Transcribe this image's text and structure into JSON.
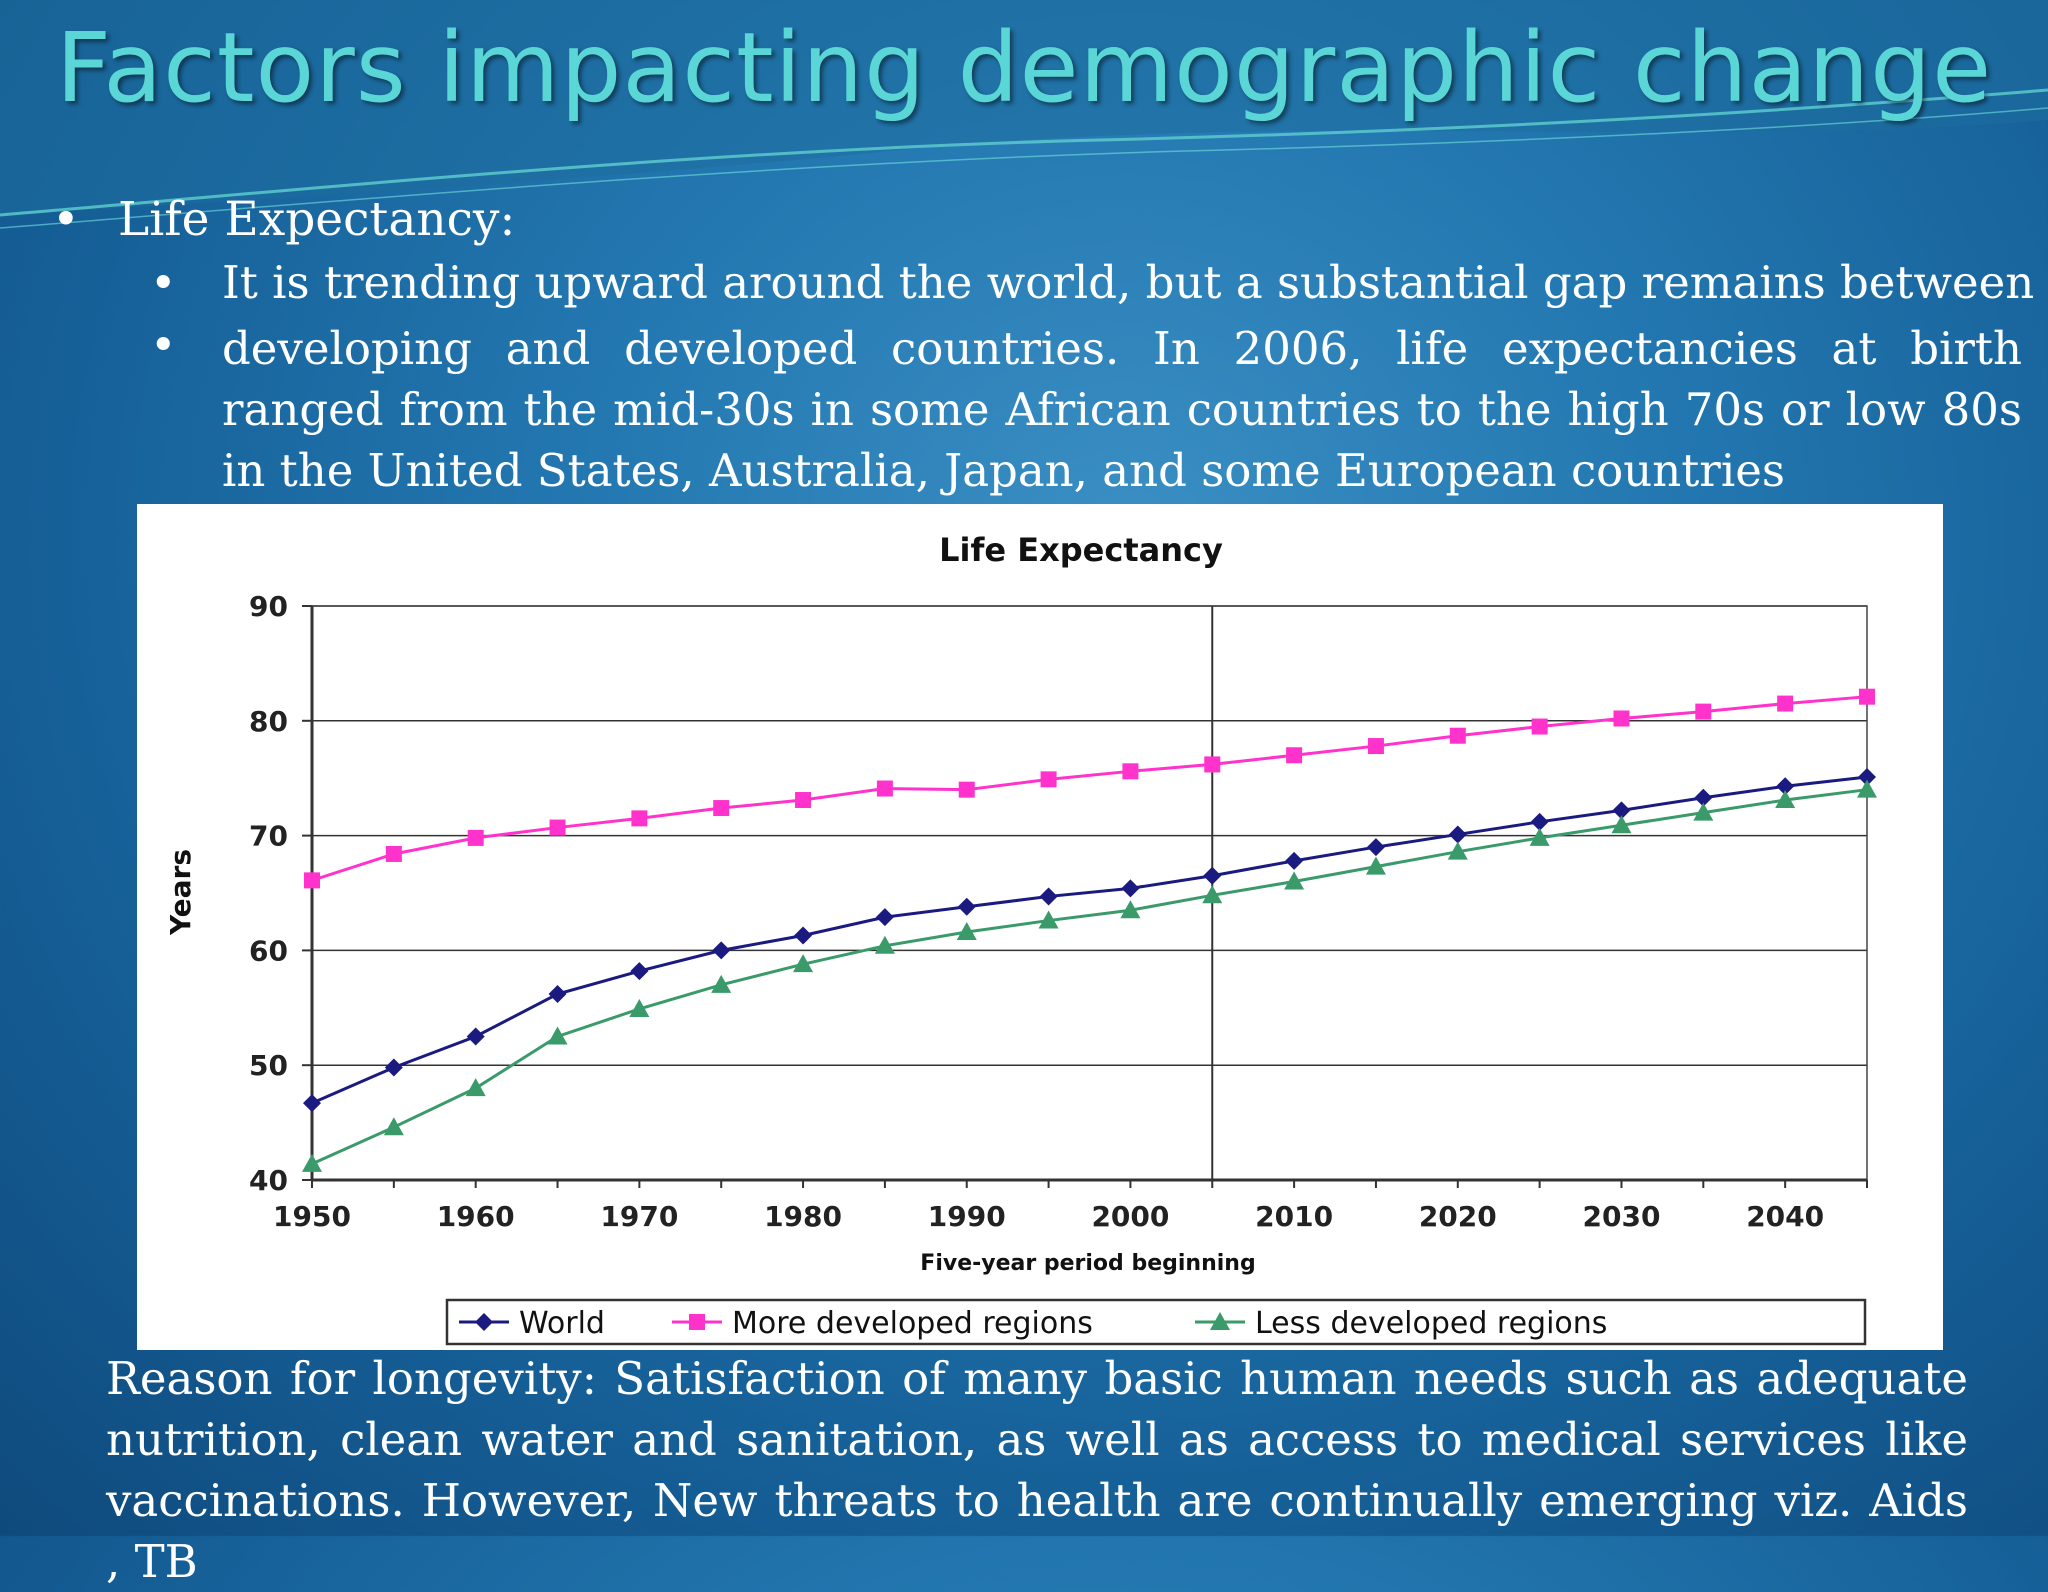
{
  "slide": {
    "title": "Factors impacting demographic change",
    "bullet": "Life Expectancy:",
    "sub_bullets": [
      "It is trending upward around the world, but a substantial gap remains between",
      "developing and developed countries. In 2006, life expectancies at birth ranged from the mid-30s in some African countries to the high 70s or low 80s in the United States, Australia, Japan, and some European countries"
    ],
    "footer": "Reason for  longevity:  Satisfaction of many basic human needs such as adequate nutrition, clean water and sanitation, as well as access to medical services like vaccinations. However, New threats to health are continually emerging viz. Aids , TB"
  },
  "colors": {
    "title": "#5ad6d6",
    "world": "#1a1a80",
    "more_developed": "#ff33cc",
    "less_developed": "#3a9a6a"
  },
  "chart_data": {
    "type": "line",
    "title": "Life Expectancy",
    "xlabel": "Five-year period beginning",
    "ylabel": "Years",
    "x": [
      1950,
      1955,
      1960,
      1965,
      1970,
      1975,
      1980,
      1985,
      1990,
      1995,
      2000,
      2005,
      2010,
      2015,
      2020,
      2025,
      2030,
      2035,
      2040,
      2045
    ],
    "x_ticks": [
      1950,
      1960,
      1970,
      1980,
      1990,
      2000,
      2010,
      2020,
      2030,
      2040
    ],
    "y_ticks": [
      40,
      50,
      60,
      70,
      80,
      90
    ],
    "xlim": [
      1950,
      2045
    ],
    "ylim": [
      40,
      90
    ],
    "grid": "horizontal",
    "reference_line_x": 2005,
    "legend_position": "bottom",
    "series": [
      {
        "name": "World",
        "marker": "diamond",
        "values": [
          46.7,
          49.8,
          52.5,
          56.2,
          58.2,
          60.0,
          61.3,
          62.9,
          63.8,
          64.7,
          65.4,
          66.5,
          67.8,
          69.0,
          70.1,
          71.2,
          72.2,
          73.3,
          74.3,
          75.1
        ]
      },
      {
        "name": "More developed regions",
        "marker": "square",
        "values": [
          66.1,
          68.4,
          69.8,
          70.7,
          71.5,
          72.4,
          73.1,
          74.1,
          74.0,
          74.9,
          75.6,
          76.2,
          77.0,
          77.8,
          78.7,
          79.5,
          80.2,
          80.8,
          81.5,
          82.1
        ]
      },
      {
        "name": "Less developed regions",
        "marker": "triangle",
        "values": [
          41.4,
          44.6,
          48.0,
          52.5,
          54.9,
          57.0,
          58.8,
          60.4,
          61.6,
          62.6,
          63.5,
          64.8,
          66.0,
          67.3,
          68.6,
          69.8,
          70.9,
          72.0,
          73.1,
          74.0
        ]
      }
    ]
  }
}
